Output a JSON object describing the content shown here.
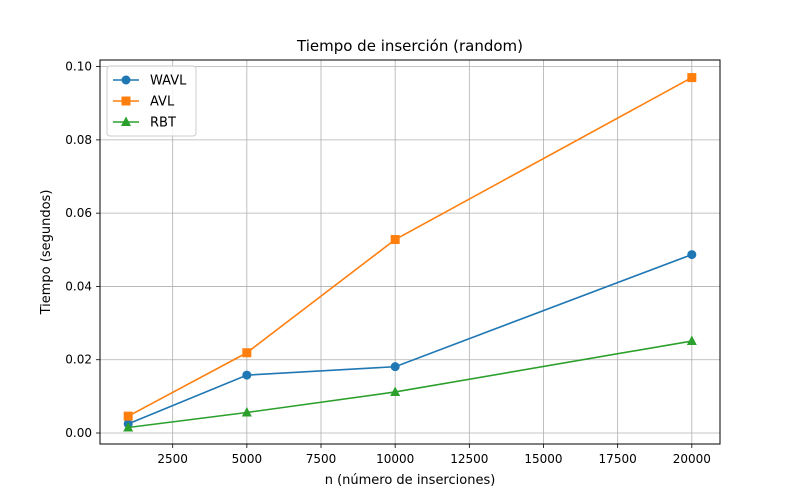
{
  "chart_data": {
    "type": "line",
    "title": "Tiempo de inserción (random)",
    "xlabel": "n (número de inserciones)",
    "ylabel": "Tiempo (segundos)",
    "x": [
      1000,
      5000,
      10000,
      20000
    ],
    "series": [
      {
        "name": "WAVL",
        "values": [
          0.0025,
          0.0158,
          0.0181,
          0.0487
        ],
        "color": "#1f77b4",
        "marker": "circle"
      },
      {
        "name": "AVL",
        "values": [
          0.0046,
          0.0219,
          0.0528,
          0.097
        ],
        "color": "#ff7f0e",
        "marker": "square"
      },
      {
        "name": "RBT",
        "values": [
          0.0015,
          0.0056,
          0.0112,
          0.0251
        ],
        "color": "#2ca02c",
        "marker": "triangle"
      }
    ],
    "xlim": [
      50,
      20950
    ],
    "ylim": [
      -0.003,
      0.1018
    ],
    "xticks": [
      2500,
      5000,
      7500,
      10000,
      12500,
      15000,
      17500,
      20000
    ],
    "xtick_labels": [
      "2500",
      "5000",
      "7500",
      "10000",
      "12500",
      "15000",
      "17500",
      "20000"
    ],
    "yticks": [
      0.0,
      0.02,
      0.04,
      0.06,
      0.08,
      0.1
    ],
    "ytick_labels": [
      "0.00",
      "0.02",
      "0.04",
      "0.06",
      "0.08",
      "0.10"
    ],
    "grid": true,
    "legend_position": "top-left"
  }
}
